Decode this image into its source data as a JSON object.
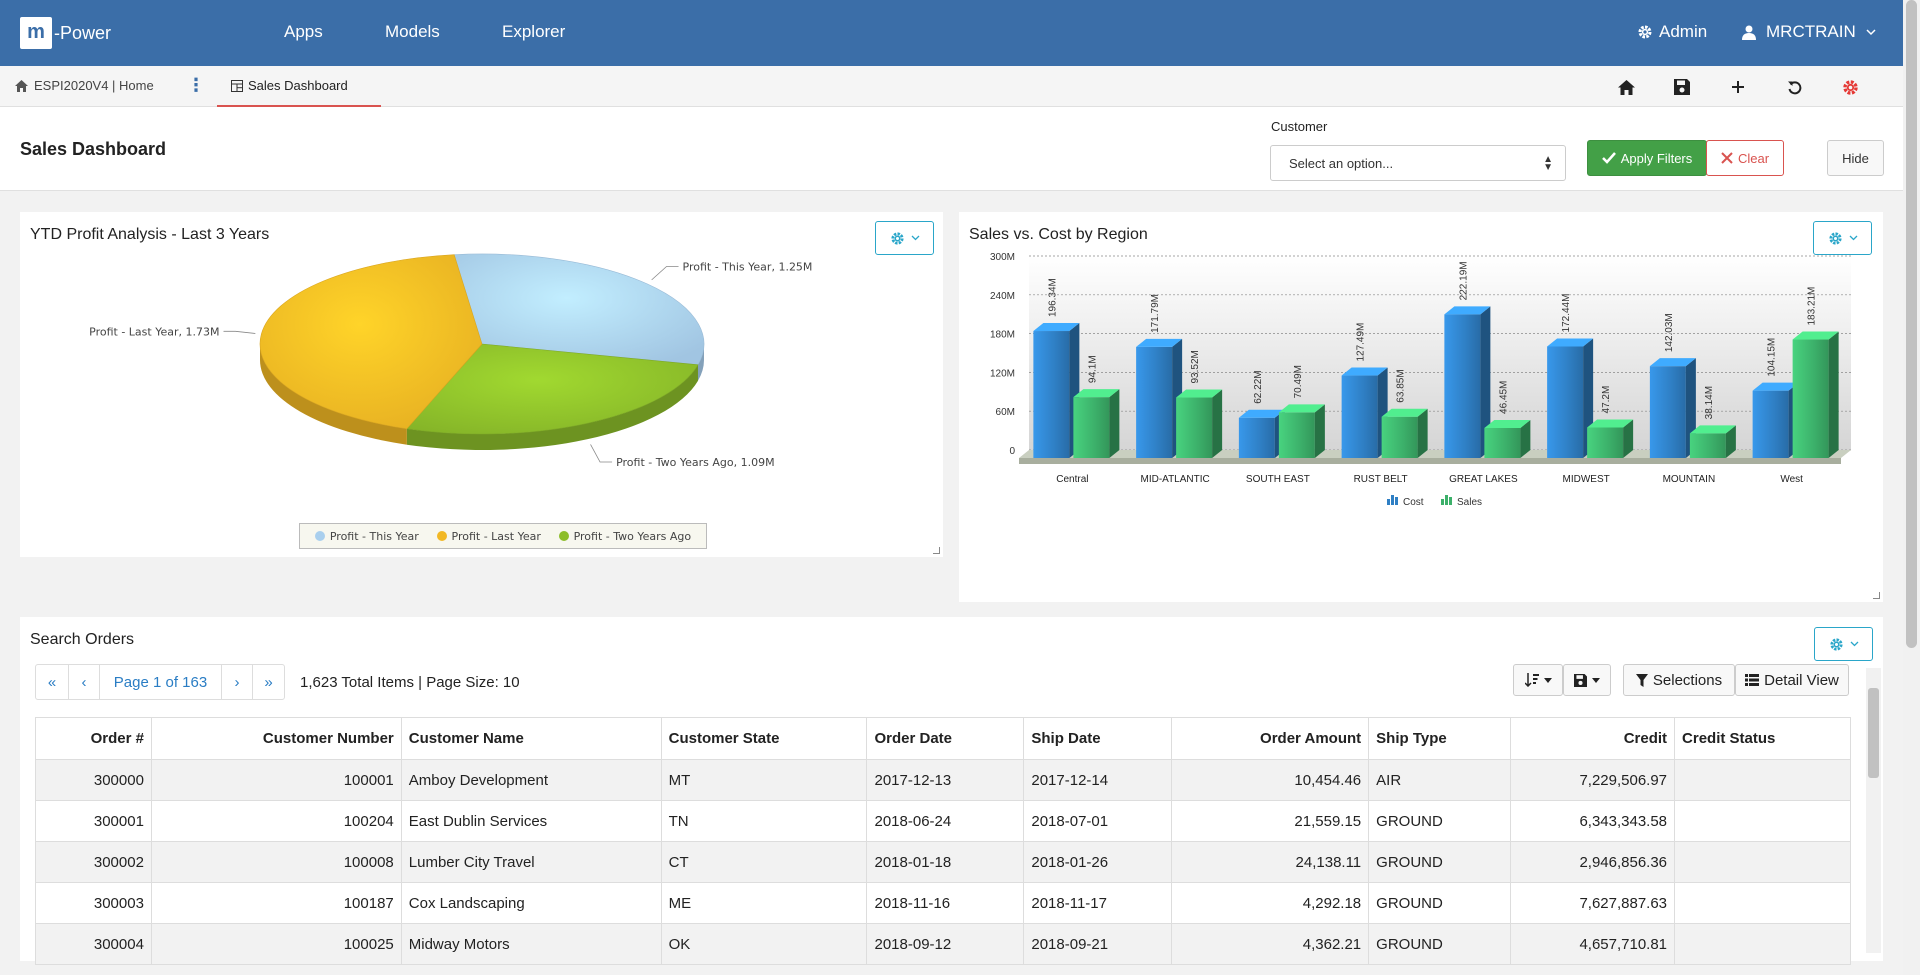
{
  "nav": {
    "logo_letter": "m",
    "logo_text": "-Power",
    "links": [
      "Apps",
      "Models",
      "Explorer"
    ],
    "admin": "Admin",
    "user": "MRCTRAIN"
  },
  "tabs": {
    "home": "ESPI2020V4 | Home",
    "active": "Sales Dashboard"
  },
  "filters": {
    "page_title": "Sales Dashboard",
    "customer_label": "Customer",
    "customer_placeholder": "Select an option...",
    "apply": "Apply Filters",
    "clear": "Clear",
    "hide": "Hide"
  },
  "pie_panel": {
    "title": "YTD Profit Analysis - Last 3 Years",
    "legend": [
      "Profit - This Year",
      "Profit - Last Year",
      "Profit - Two Years Ago"
    ]
  },
  "bar_panel": {
    "title": "Sales vs. Cost by Region",
    "legend": [
      "Cost",
      "Sales"
    ]
  },
  "chart_data": [
    {
      "type": "pie",
      "title": "YTD Profit Analysis - Last 3 Years",
      "slices": [
        {
          "name": "Profit - This Year",
          "value": 1.25,
          "label": "Profit - This Year, 1.25M",
          "color": "#a9cfee"
        },
        {
          "name": "Profit - Two Years Ago",
          "value": 1.09,
          "label": "Profit - Two Years Ago, 1.09M",
          "color": "#8cbd2a"
        },
        {
          "name": "Profit - Last Year",
          "value": 1.73,
          "label": "Profit - Last Year, 1.73M",
          "color": "#f2b824"
        }
      ]
    },
    {
      "type": "bar",
      "title": "Sales vs. Cost by Region",
      "categories": [
        "Central",
        "MID-ATLANTIC",
        "SOUTH EAST",
        "RUST BELT",
        "GREAT LAKES",
        "MIDWEST",
        "MOUNTAIN",
        "West"
      ],
      "series": [
        {
          "name": "Cost",
          "values": [
            196.34,
            171.79,
            62.22,
            127.49,
            222.19,
            172.44,
            142.03,
            104.15
          ],
          "labels": [
            "196.34M",
            "171.79M",
            "62.22M",
            "127.49M",
            "222.19M",
            "172.44M",
            "142.03M",
            "104.15M"
          ],
          "color": "#2f7fc4"
        },
        {
          "name": "Sales",
          "values": [
            94.1,
            93.52,
            70.49,
            63.85,
            46.45,
            47.2,
            38.14,
            183.21
          ],
          "labels": [
            "94.1M",
            "93.52M",
            "70.49M",
            "63.85M",
            "46.45M",
            "47.2M",
            "38.14M",
            "183.21M"
          ],
          "color": "#3cb06a"
        }
      ],
      "ylim": [
        0,
        300
      ],
      "yticks": [
        "0",
        "60M",
        "120M",
        "180M",
        "240M",
        "300M"
      ],
      "grid": true,
      "legend": "bottom"
    }
  ],
  "orders": {
    "title": "Search Orders",
    "page_label": "Page 1 of 163",
    "total": "1,623 Total Items | Page Size: 10",
    "selections": "Selections",
    "detail_view": "Detail View",
    "columns": [
      "Order #",
      "Customer Number",
      "Customer Name",
      "Customer State",
      "Order Date",
      "Ship Date",
      "Order Amount",
      "Ship Type",
      "Credit",
      "Credit Status"
    ],
    "rows": [
      [
        "300000",
        "100001",
        "Amboy Development",
        "MT",
        "2017-12-13",
        "2017-12-14",
        "10,454.46",
        "AIR",
        "7,229,506.97",
        ""
      ],
      [
        "300001",
        "100204",
        "East Dublin Services",
        "TN",
        "2018-06-24",
        "2018-07-01",
        "21,559.15",
        "GROUND",
        "6,343,343.58",
        ""
      ],
      [
        "300002",
        "100008",
        "Lumber City Travel",
        "CT",
        "2018-01-18",
        "2018-01-26",
        "24,138.11",
        "GROUND",
        "2,946,856.36",
        ""
      ],
      [
        "300003",
        "100187",
        "Cox Landscaping",
        "ME",
        "2018-11-16",
        "2018-11-17",
        "4,292.18",
        "GROUND",
        "7,627,887.63",
        ""
      ],
      [
        "300004",
        "100025",
        "Midway Motors",
        "OK",
        "2018-09-12",
        "2018-09-21",
        "4,362.21",
        "GROUND",
        "4,657,710.81",
        ""
      ]
    ]
  }
}
